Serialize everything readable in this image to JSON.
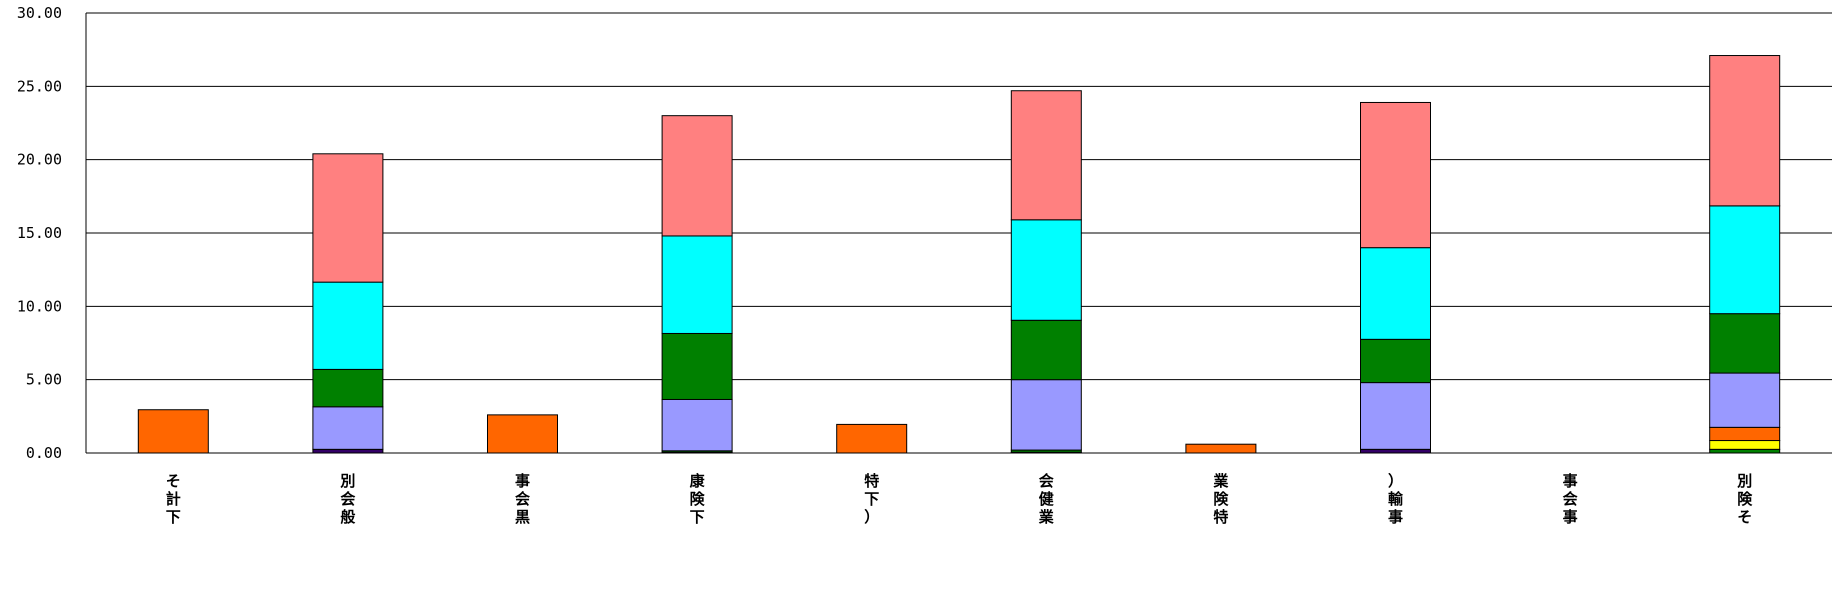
{
  "chart_data": {
    "type": "bar",
    "stacked": true,
    "title": "",
    "xlabel": "",
    "ylabel": "",
    "ylim": [
      0,
      30
    ],
    "yticks": [
      "0.00",
      "5.00",
      "10.00",
      "15.00",
      "20.00",
      "25.00",
      "30.00"
    ],
    "ytick_values": [
      0,
      5,
      10,
      15,
      20,
      25,
      30
    ],
    "grid": true,
    "legend": "none",
    "categories": [
      "そ計下",
      "別会般",
      "事会黒",
      "康険下",
      "特下）",
      "会健業",
      "業険特",
      "）輸事",
      "事会事",
      "別険そ"
    ],
    "series": [
      {
        "color": "#330066",
        "values": [
          0,
          0.25,
          0,
          0.05,
          0,
          0.05,
          0,
          0.25,
          0,
          0
        ]
      },
      {
        "color": "#008000",
        "values": [
          0,
          0,
          0,
          0.1,
          0,
          0.15,
          0,
          0,
          0,
          0.25
        ]
      },
      {
        "color": "#FFFF00",
        "values": [
          0,
          0,
          0,
          0,
          0,
          0,
          0,
          0,
          0,
          0.6
        ]
      },
      {
        "color": "#FF6600",
        "values": [
          2.95,
          0,
          2.6,
          0,
          1.95,
          0,
          0.6,
          0,
          0,
          0.9
        ]
      },
      {
        "color": "#9999FF",
        "values": [
          0,
          2.9,
          0,
          3.5,
          0,
          4.8,
          0,
          4.55,
          0,
          3.7
        ]
      },
      {
        "color": "#008000",
        "values": [
          0,
          2.55,
          0,
          4.5,
          0,
          4.05,
          0,
          2.95,
          0,
          4.05
        ]
      },
      {
        "color": "#00FFFF",
        "values": [
          0,
          5.95,
          0,
          6.65,
          0,
          6.85,
          0,
          6.25,
          0,
          7.35
        ]
      },
      {
        "color": "#FF8080",
        "values": [
          0,
          8.75,
          0,
          8.2,
          0,
          8.8,
          0,
          9.9,
          0,
          10.25
        ]
      }
    ]
  }
}
